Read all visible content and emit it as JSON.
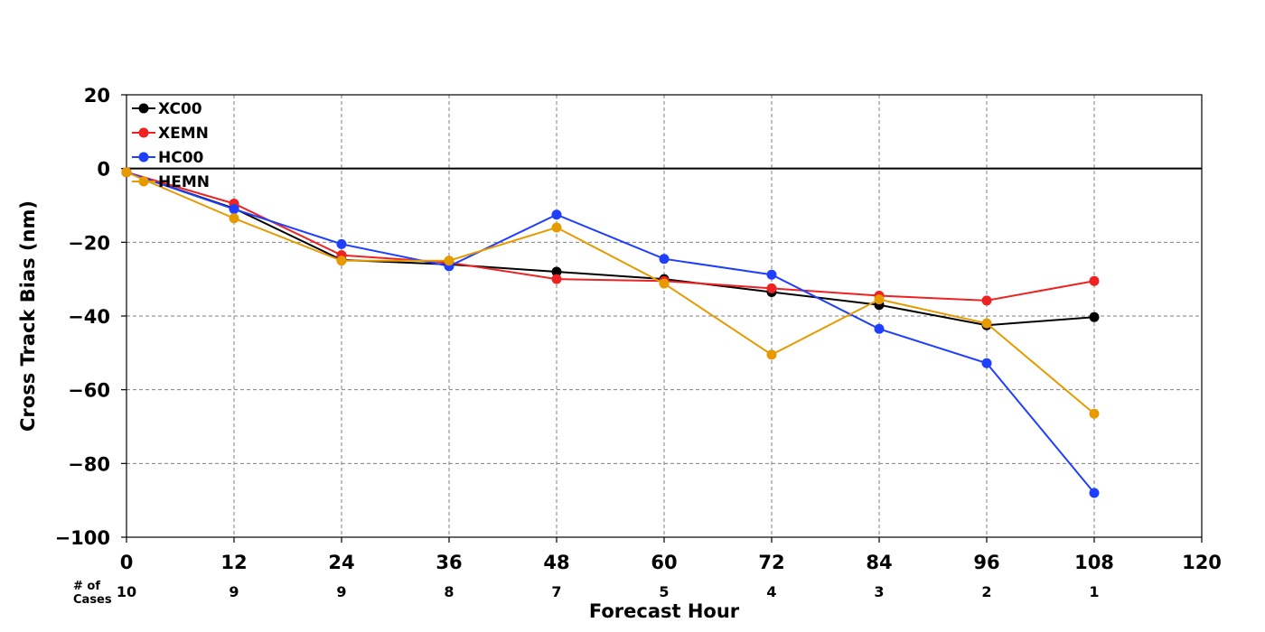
{
  "chart_data": {
    "type": "line",
    "xlabel": "Forecast Hour",
    "ylabel": "Cross Track Bias (nm)",
    "xlim": [
      0,
      120
    ],
    "ylim": [
      -100,
      20
    ],
    "x_ticks": [
      0,
      12,
      24,
      36,
      48,
      60,
      72,
      84,
      96,
      108,
      120
    ],
    "y_ticks": [
      20,
      0,
      -20,
      -40,
      -60,
      -80,
      -100
    ],
    "y_tick_labels": [
      "20",
      "0",
      "−20",
      "−40",
      "−60",
      "−80",
      "−100"
    ],
    "grid": true,
    "zero_line": true,
    "legend_position": "top-left",
    "cases_header": [
      "# of",
      "Cases"
    ],
    "cases": [
      {
        "x": 0,
        "n": "10"
      },
      {
        "x": 12,
        "n": "9"
      },
      {
        "x": 24,
        "n": "9"
      },
      {
        "x": 36,
        "n": "8"
      },
      {
        "x": 48,
        "n": "7"
      },
      {
        "x": 60,
        "n": "5"
      },
      {
        "x": 72,
        "n": "4"
      },
      {
        "x": 84,
        "n": "3"
      },
      {
        "x": 96,
        "n": "2"
      },
      {
        "x": 108,
        "n": "1"
      }
    ],
    "x": [
      0,
      12,
      24,
      36,
      48,
      60,
      72,
      84,
      96,
      108
    ],
    "series": [
      {
        "name": "XC00",
        "color": "#000000",
        "values": [
          -1.0,
          -10.8,
          -24.8,
          -26.0,
          -28.0,
          -30.0,
          -33.5,
          -37.0,
          -42.5,
          -40.3
        ]
      },
      {
        "name": "XEMN",
        "color": "#ee2222",
        "values": [
          -1.0,
          -9.5,
          -23.5,
          -25.5,
          -30.0,
          -30.5,
          -32.5,
          -34.5,
          -35.8,
          -30.5
        ]
      },
      {
        "name": "HC00",
        "color": "#1f3fff",
        "values": [
          -1.0,
          -11.0,
          -20.5,
          -26.5,
          -12.5,
          -24.5,
          -28.8,
          -43.5,
          -52.8,
          -88.0
        ]
      },
      {
        "name": "HEMN",
        "color": "#e69a00",
        "values": [
          -1.0,
          -13.5,
          -25.0,
          -25.0,
          -16.0,
          -31.2,
          -50.5,
          -35.5,
          -42.0,
          -66.5
        ]
      }
    ]
  }
}
